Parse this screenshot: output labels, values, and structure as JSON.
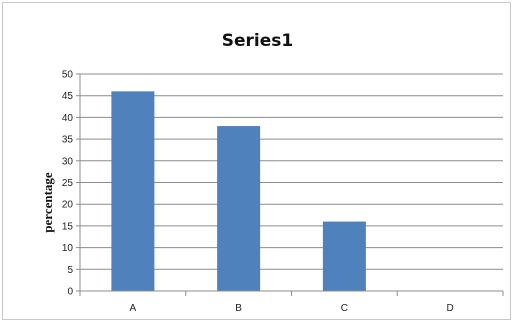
{
  "chart_data": {
    "type": "bar",
    "title": "Series1",
    "ylabel": "percentage",
    "xlabel": "",
    "categories": [
      "A",
      "B",
      "C",
      "D"
    ],
    "series": [
      {
        "values": [
          46,
          38,
          16,
          0
        ]
      }
    ],
    "ylim": [
      0,
      50
    ],
    "yticks": [
      0,
      5,
      10,
      15,
      20,
      25,
      30,
      35,
      40,
      45,
      50
    ],
    "grid": true,
    "legend": "none",
    "bar_color": "#4f81bd"
  }
}
